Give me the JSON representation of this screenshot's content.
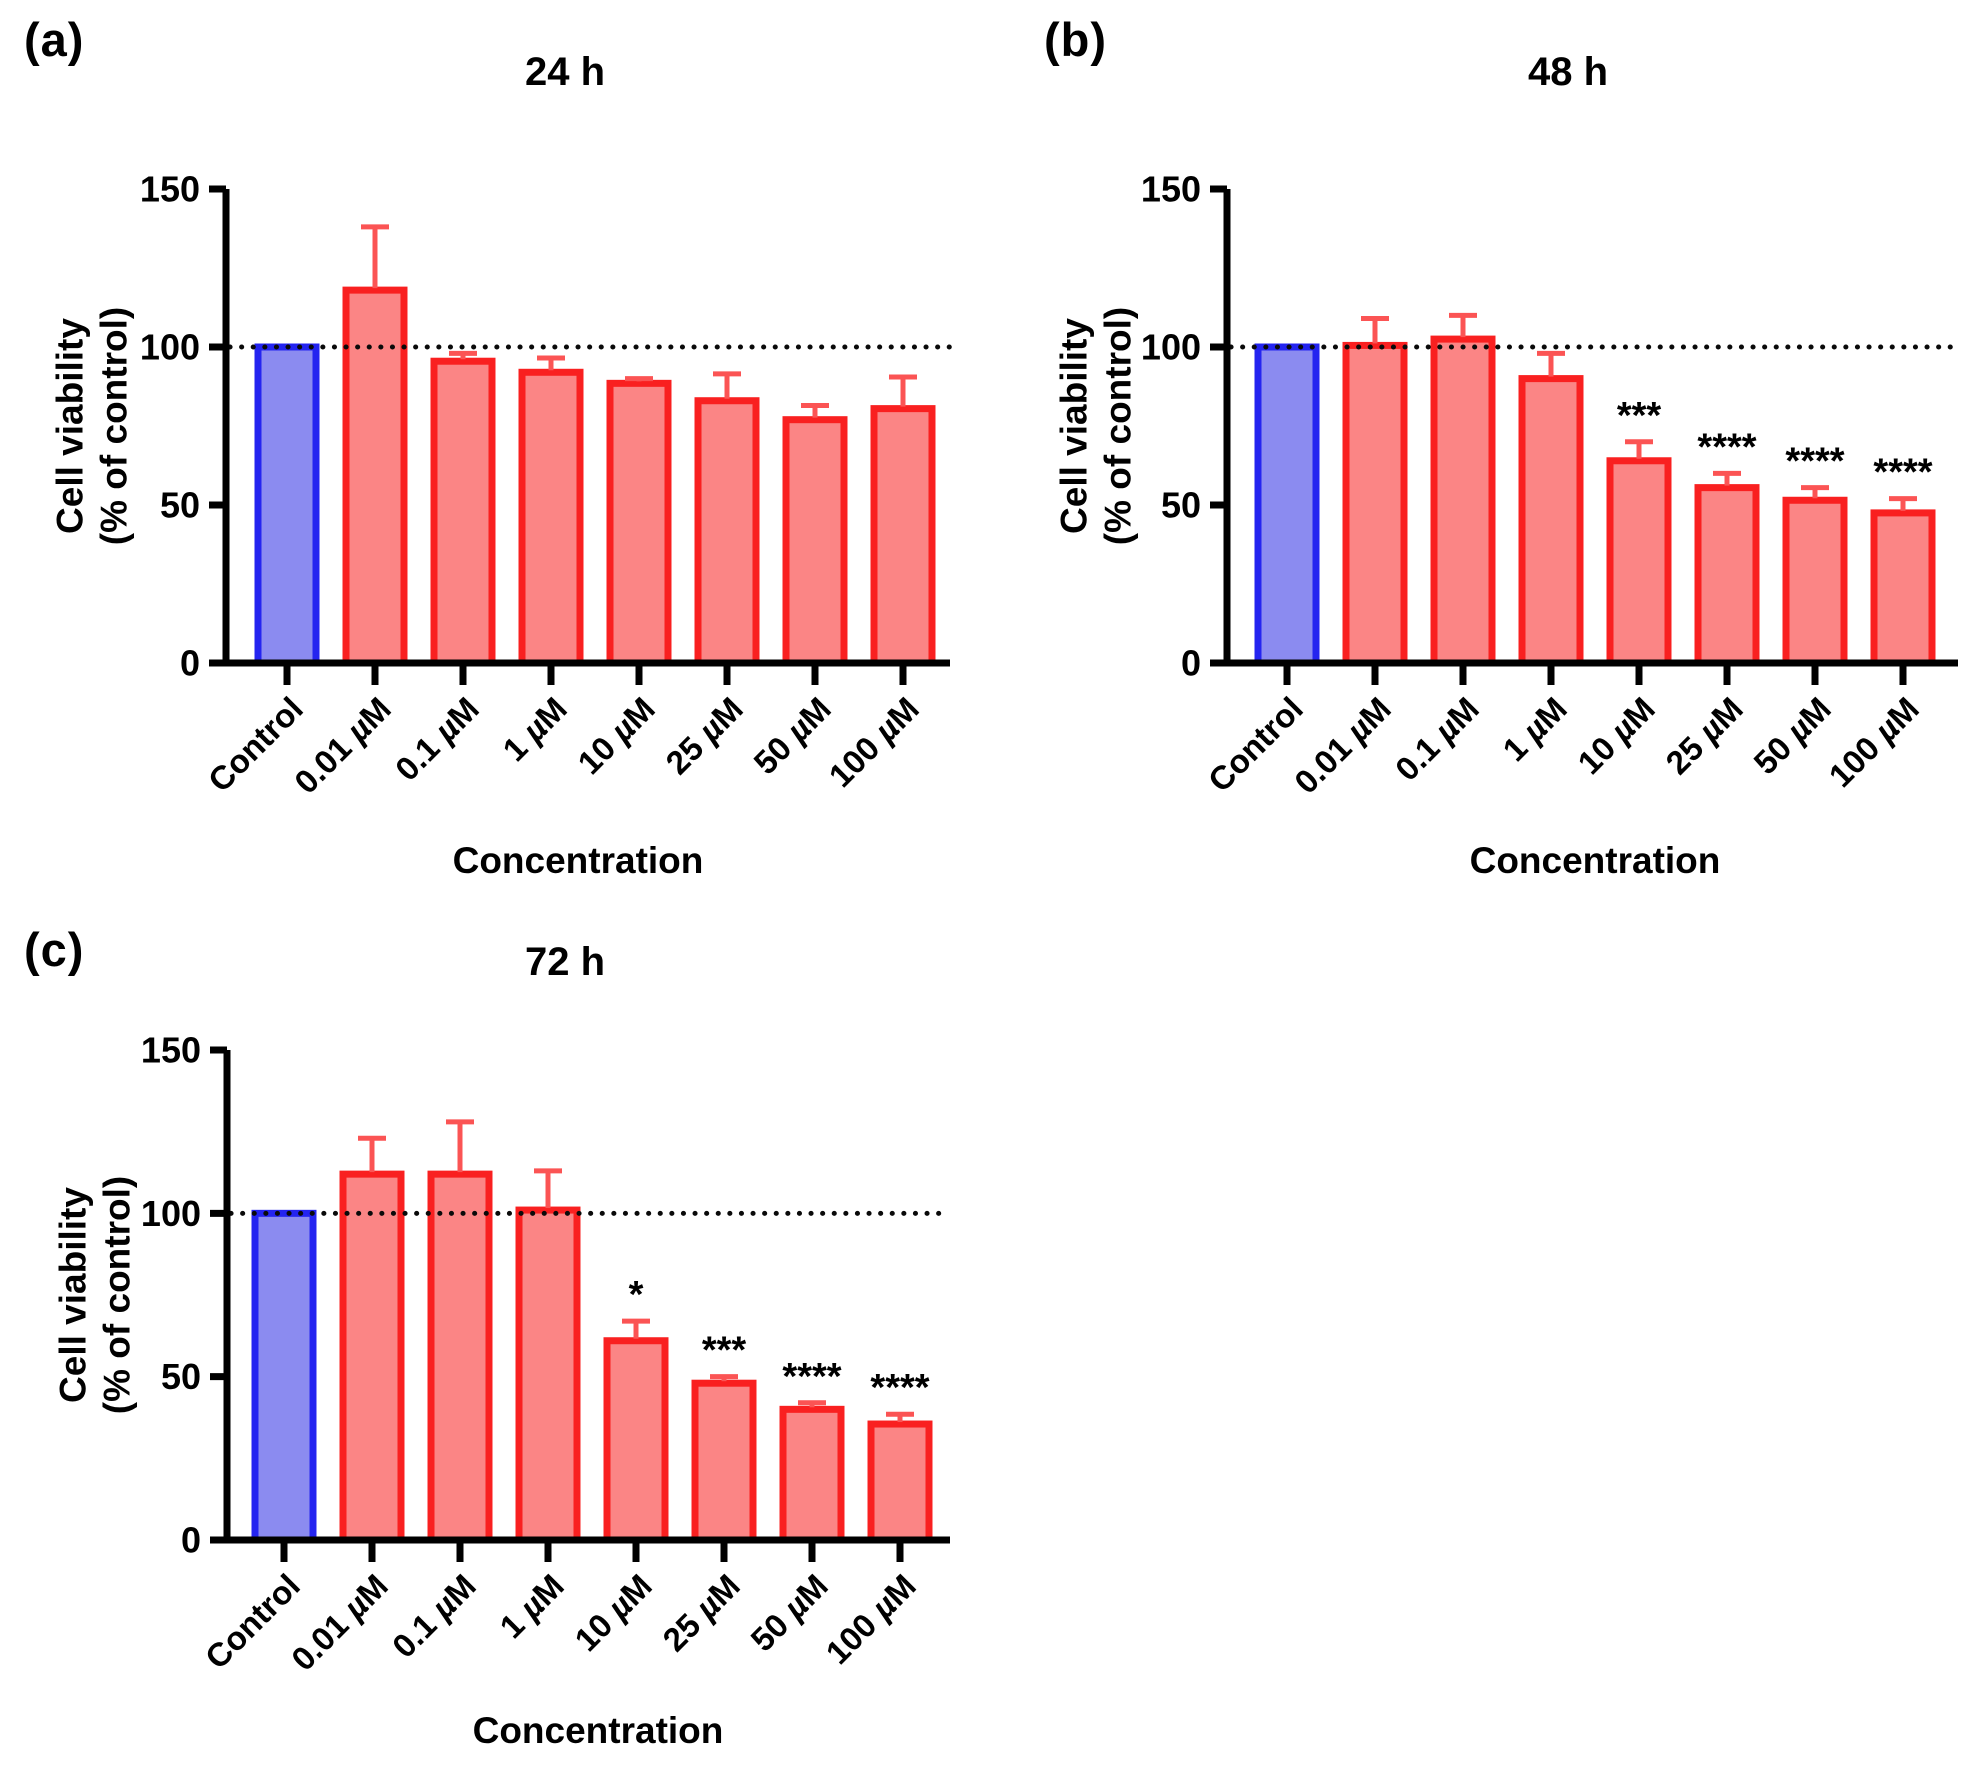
{
  "figure_title": "Cell viability bar charts at three timepoints",
  "styles": {
    "control_fill": "#8b8bf0",
    "control_stroke": "#2424f0",
    "treated_fill": "#fb8585",
    "treated_stroke": "#f92020",
    "error_bar_color": "#fb5454",
    "axis_color": "#000000",
    "reference_line_color": "#0a0a0a",
    "text_color": "#000000",
    "background": "#ffffff"
  },
  "chart_data": [
    {
      "type": "bar",
      "panel_label": "(a)",
      "title": "24 h",
      "xlabel": "Concentration",
      "ylabel_lines": [
        "Cell viability",
        "(% of control)"
      ],
      "categories": [
        "Control",
        "0.01 µM",
        "0.1 µM",
        "1 µM",
        "10 µM",
        "25 µM",
        "50 µM",
        "100 µM"
      ],
      "values": [
        100,
        118,
        95.5,
        92,
        88.5,
        83,
        77,
        80.5
      ],
      "errors": [
        0,
        20,
        2.5,
        4.5,
        1.5,
        8.5,
        4.5,
        10
      ],
      "significance": [
        "",
        "",
        "",
        "",
        "",
        "",
        "",
        ""
      ],
      "ylim": [
        0,
        150
      ],
      "yticks": [
        0,
        50,
        100,
        150
      ],
      "reference_line": 100,
      "control_index": 0,
      "legend": "none",
      "grid": "off"
    },
    {
      "type": "bar",
      "panel_label": "(b)",
      "title": "48 h",
      "xlabel": "Concentration",
      "ylabel_lines": [
        "Cell viability",
        "(% of control)"
      ],
      "categories": [
        "Control",
        "0.01 µM",
        "0.1 µM",
        "1 µM",
        "10 µM",
        "25 µM",
        "50 µM",
        "100 µM"
      ],
      "values": [
        100,
        100.5,
        102.5,
        90,
        64,
        55.5,
        51.5,
        47.5
      ],
      "errors": [
        0,
        8.5,
        7.5,
        8,
        6,
        4.5,
        4,
        4.5
      ],
      "significance": [
        "",
        "",
        "",
        "",
        "***",
        "****",
        "****",
        "****"
      ],
      "ylim": [
        0,
        150
      ],
      "yticks": [
        0,
        50,
        100,
        150
      ],
      "reference_line": 100,
      "control_index": 0,
      "legend": "none",
      "grid": "off"
    },
    {
      "type": "bar",
      "panel_label": "(c)",
      "title": "72 h",
      "xlabel": "Concentration",
      "ylabel_lines": [
        "Cell viability",
        "(% of control)"
      ],
      "categories": [
        "Control",
        "0.01 µM",
        "0.1 µM",
        "1 µM",
        "10 µM",
        "25 µM",
        "50 µM",
        "100 µM"
      ],
      "values": [
        100,
        112,
        112,
        101,
        61,
        48,
        40,
        35.5
      ],
      "errors": [
        0,
        11,
        16,
        12,
        6,
        2,
        2,
        3
      ],
      "significance": [
        "",
        "",
        "",
        "",
        "*",
        "***",
        "****",
        "****"
      ],
      "ylim": [
        0,
        150
      ],
      "yticks": [
        0,
        50,
        100,
        150
      ],
      "reference_line": 100,
      "control_index": 0,
      "legend": "none",
      "grid": "off"
    }
  ]
}
